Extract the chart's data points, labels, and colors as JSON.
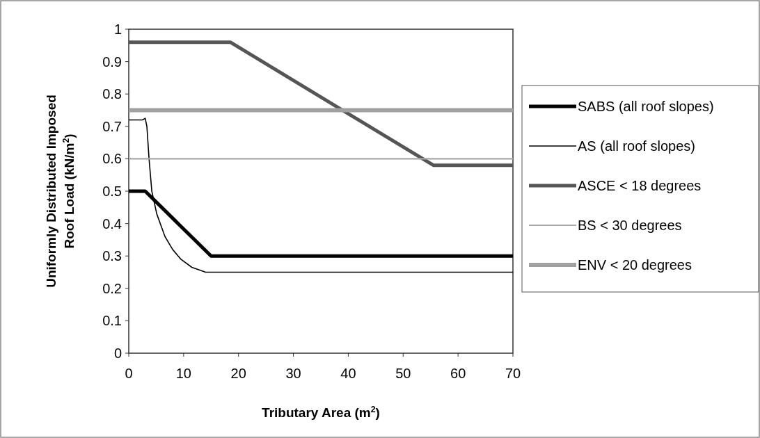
{
  "chart_data": {
    "type": "line",
    "xlabel": "Tributary Area (m$^{2}$)",
    "ylabel": "Uniformly Distributed Imposed\nRoof Load (kN/m$^{2}$)",
    "xlim": [
      0,
      70
    ],
    "xticks": [
      0,
      10,
      20,
      30,
      40,
      50,
      60,
      70
    ],
    "ylim": [
      0,
      1
    ],
    "yticks": [
      0,
      0.1,
      0.2,
      0.3,
      0.4,
      0.5,
      0.6,
      0.7,
      0.8,
      0.9,
      1
    ],
    "grid": false,
    "legend": "right",
    "marker": "none",
    "line_style": "solid",
    "series": [
      {
        "name": "SABS (all roof slopes)",
        "color": "#000000",
        "x": [
          0,
          3,
          15,
          70
        ],
        "values": [
          0.5,
          0.5,
          0.3,
          0.3
        ]
      },
      {
        "name": "AS (all roof slopes)",
        "color": "#000000",
        "x": [
          0,
          2.5,
          3,
          3.3,
          3.7,
          4.2,
          5.1,
          6.6,
          8,
          9.5,
          11.5,
          14,
          70
        ],
        "values": [
          0.72,
          0.72,
          0.725,
          0.7,
          0.6,
          0.5,
          0.43,
          0.36,
          0.32,
          0.29,
          0.265,
          0.25,
          0.25
        ]
      },
      {
        "name": "ASCE < 18 degrees",
        "color": "#555555",
        "x": [
          0,
          18.5,
          55.5,
          70
        ],
        "values": [
          0.96,
          0.96,
          0.58,
          0.58
        ]
      },
      {
        "name": "BS < 30 degrees",
        "color": "#a8a8a8",
        "x": [
          0,
          70
        ],
        "values": [
          0.6,
          0.6
        ]
      },
      {
        "name": "ENV < 20 degrees",
        "color": "#a0a0a0",
        "x": [
          0,
          70
        ],
        "values": [
          0.75,
          0.75
        ]
      }
    ]
  }
}
